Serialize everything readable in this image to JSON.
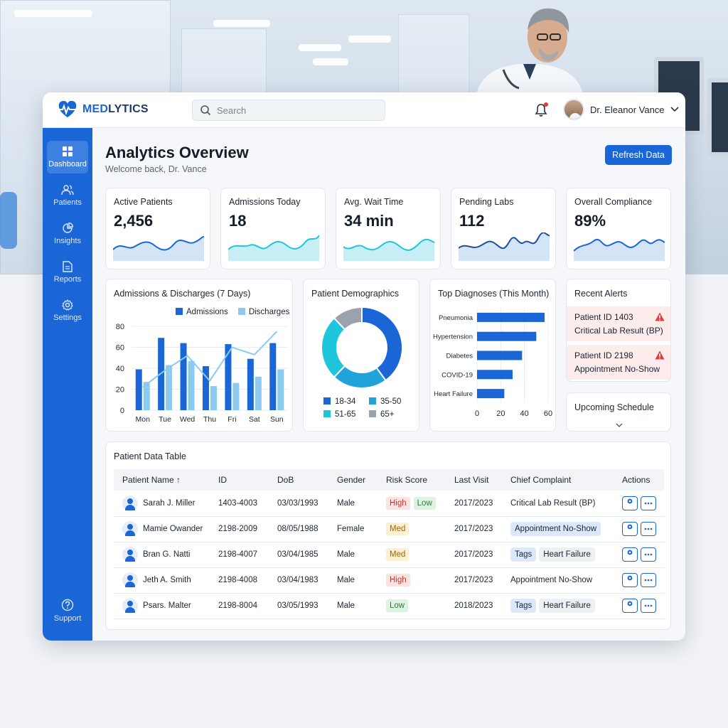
{
  "app": {
    "logo_prefix": "MED",
    "logo_suffix": "LYTICS",
    "search_placeholder": "Search",
    "user_name": "Dr. Eleanor Vance"
  },
  "sidebar": {
    "items": [
      {
        "label": "Dashboard",
        "icon": "grid-icon",
        "active": true
      },
      {
        "label": "Patients",
        "icon": "users-icon"
      },
      {
        "label": "Insights",
        "icon": "pie-chart-icon"
      },
      {
        "label": "Reports",
        "icon": "document-icon"
      },
      {
        "label": "Settings",
        "icon": "gear-icon"
      }
    ],
    "support_label": "Support"
  },
  "header": {
    "title": "Analytics Overview",
    "subtitle": "Welcome back, Dr. Vance",
    "refresh_label": "Refresh Data"
  },
  "kpis": [
    {
      "label": "Active Patients",
      "value": "2,456"
    },
    {
      "label": "Admissions Today",
      "value": "18"
    },
    {
      "label": "Avg. Wait Time",
      "value": "34 min"
    },
    {
      "label": "Pending Labs",
      "value": "112"
    },
    {
      "label": "Overall Compliance",
      "value": "89%"
    }
  ],
  "colors": {
    "primary": "#1a66d6",
    "light_blue": "#8ccaf0",
    "teal": "#1ec6dd",
    "grey": "#9aa3ad",
    "alert_red": "#e23b3b"
  },
  "admissions_card": {
    "title": "Admissions & Discharges (7 Days)"
  },
  "demographics_card": {
    "title": "Patient Demographics"
  },
  "diagnoses_card": {
    "title": "Top Diagnoses (This Month)"
  },
  "alerts": {
    "title": "Recent Alerts",
    "items": [
      {
        "title": "Patient ID 1403",
        "body": "Critical Lab Result (BP)"
      },
      {
        "title": "Patient ID 2198",
        "body": "Appointment No-Show"
      }
    ]
  },
  "schedule": {
    "title": "Upcoming Schedule"
  },
  "chart_data": [
    {
      "type": "bar",
      "title": "Admissions & Discharges (7 Days)",
      "categories": [
        "Mon",
        "Tue",
        "Wed",
        "Thu",
        "Fri",
        "Sat",
        "Sun"
      ],
      "series": [
        {
          "name": "Admissions",
          "values": [
            39,
            69,
            64,
            42,
            63,
            49,
            64
          ]
        },
        {
          "name": "Discharges",
          "values": [
            27,
            43,
            47,
            23,
            26,
            32,
            39
          ]
        }
      ],
      "overlay_line": [
        22,
        38,
        52,
        28,
        60,
        53,
        75
      ],
      "yticks": [
        0,
        20,
        40,
        60,
        80
      ],
      "ylim": [
        0,
        80
      ]
    },
    {
      "type": "pie",
      "title": "Patient Demographics",
      "donut": true,
      "slices": [
        {
          "name": "18-34",
          "value": 40
        },
        {
          "name": "35-50",
          "value": 22
        },
        {
          "name": "51-65",
          "value": 26
        },
        {
          "name": "65+",
          "value": 12
        }
      ]
    },
    {
      "type": "bar",
      "orientation": "horizontal",
      "title": "Top Diagnoses (This Month)",
      "categories": [
        "Pneumonia",
        "Hypertension",
        "Diabetes",
        "COVID-19",
        "Heart Failure"
      ],
      "values": [
        57,
        50,
        38,
        30,
        23
      ],
      "xticks": [
        0,
        20,
        40,
        60
      ],
      "xlim": [
        0,
        60
      ]
    }
  ],
  "table": {
    "title": "Patient Data Table",
    "columns": [
      "Patient Name ↑",
      "ID",
      "DoB",
      "Gender",
      "Risk Score",
      "Last Visit",
      "Chief Complaint",
      "Actions"
    ],
    "rows": [
      {
        "name": "Sarah J. Miller",
        "id": "1403-4003",
        "dob": "03/03/1993",
        "gender": "Male",
        "risk": [
          "High",
          "Low"
        ],
        "visit": "2017/2023",
        "complaint": [
          {
            "text": "Critical Lab Result (BP)",
            "style": "plain"
          }
        ]
      },
      {
        "name": "Mamie Owander",
        "id": "2198-2009",
        "dob": "08/05/1988",
        "gender": "Female",
        "risk": [
          "Med"
        ],
        "visit": "2017/2023",
        "complaint": [
          {
            "text": "Appointment No-Show",
            "style": "blue"
          }
        ]
      },
      {
        "name": "Bran G. Natti",
        "id": "2198-4007",
        "dob": "03/04/1985",
        "gender": "Male",
        "risk": [
          "Med"
        ],
        "visit": "2017/2023",
        "complaint": [
          {
            "text": "Tags",
            "style": "blue"
          },
          {
            "text": "Heart Failure",
            "style": "grey"
          }
        ]
      },
      {
        "name": "Jeth A. Smith",
        "id": "2198-4008",
        "dob": "03/04/1983",
        "gender": "Male",
        "risk": [
          "High"
        ],
        "visit": "2017/2023",
        "complaint": [
          {
            "text": "Appointment No-Show",
            "style": "plain"
          }
        ]
      },
      {
        "name": "Psars. Malter",
        "id": "2198-8004",
        "dob": "03/05/1993",
        "gender": "Male",
        "risk": [
          "Low"
        ],
        "visit": "2018/2023",
        "complaint": [
          {
            "text": "Tags",
            "style": "blue"
          },
          {
            "text": "Heart Failure",
            "style": "grey"
          }
        ]
      }
    ]
  }
}
